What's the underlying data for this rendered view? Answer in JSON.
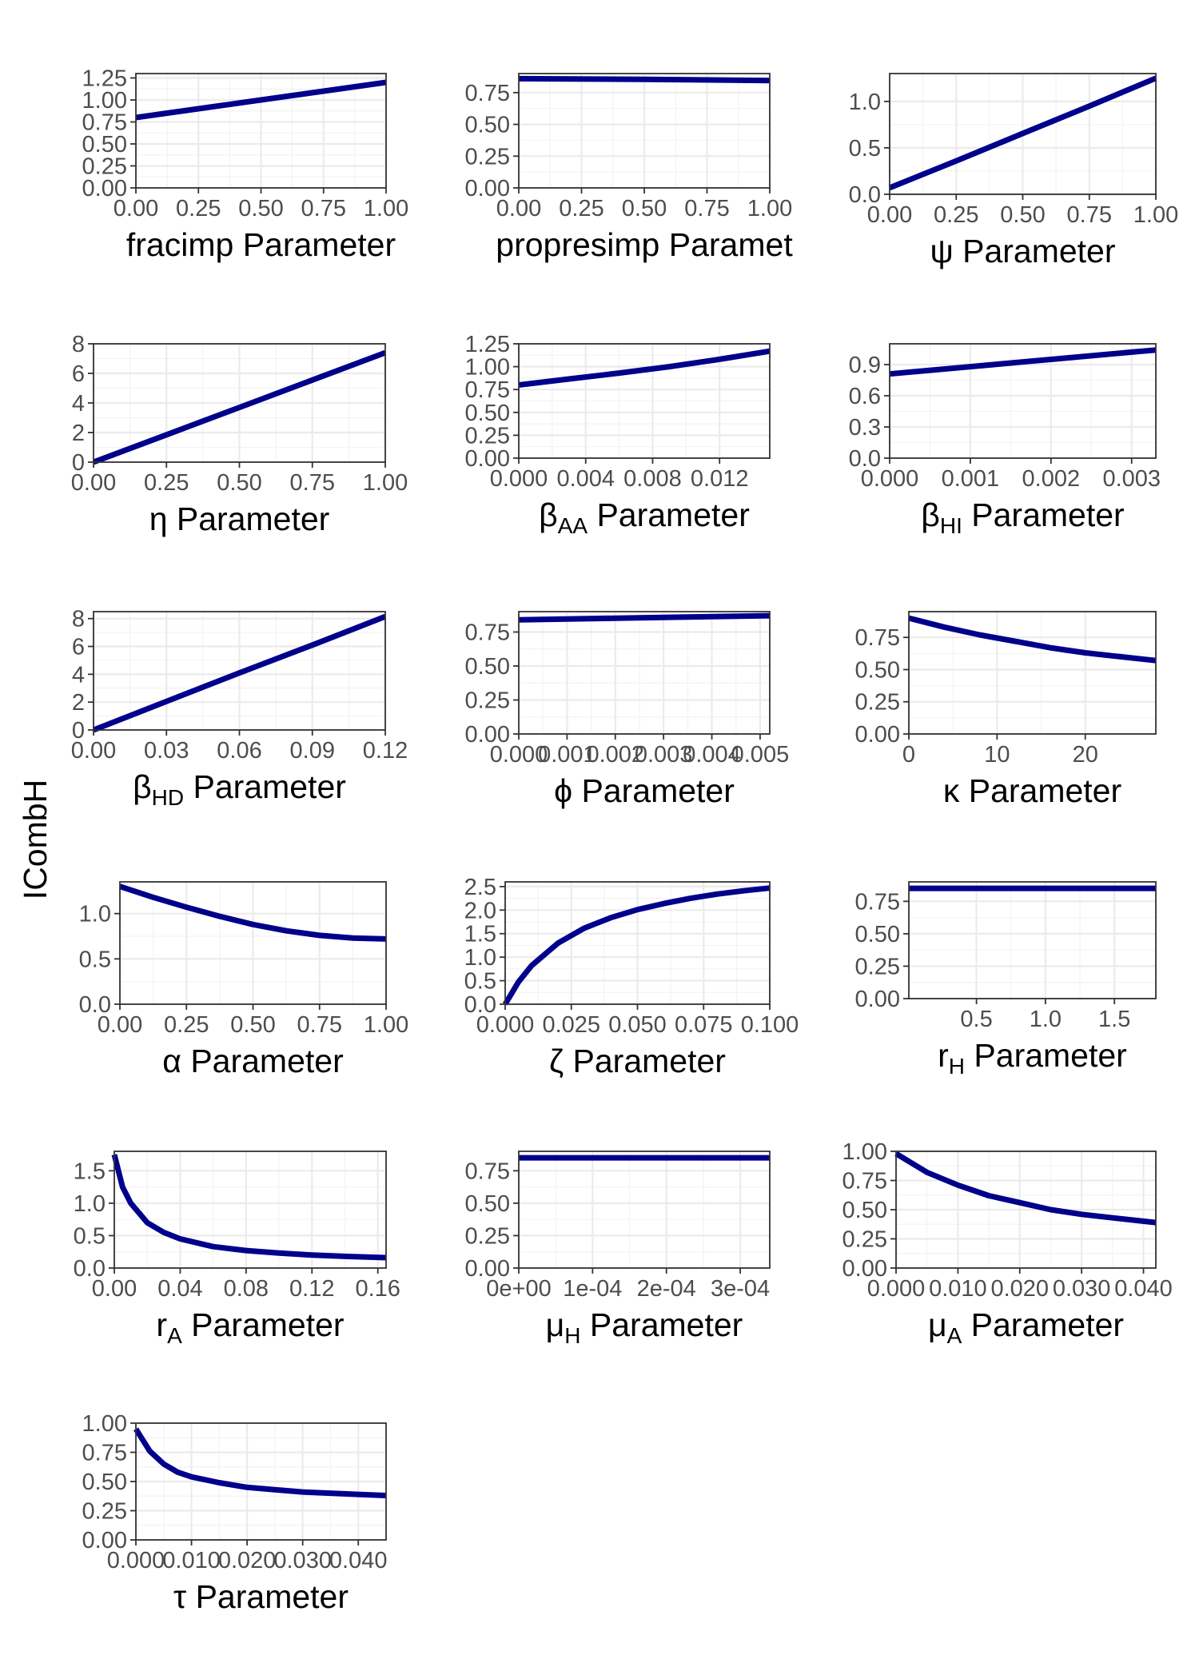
{
  "figure": {
    "ylabel": "ICombH"
  },
  "colors": {
    "line": "#00008b",
    "grid": "#ebebeb",
    "border": "#333333",
    "tick_text": "#4d4d4d"
  },
  "chart_data": [
    {
      "type": "line",
      "name": "fracimp",
      "xlabel": "fracimp Parameter",
      "xlim": [
        0,
        1
      ],
      "ylim": [
        0,
        1.3
      ],
      "xticks": [
        0,
        0.25,
        0.5,
        0.75,
        1
      ],
      "xtick_labels": [
        "0.00",
        "0.25",
        "0.50",
        "0.75",
        "1.00"
      ],
      "yticks": [
        0,
        0.25,
        0.5,
        0.75,
        1,
        1.25
      ],
      "ytick_labels": [
        "0.00",
        "0.25",
        "0.50",
        "0.75",
        "1.00",
        "1.25"
      ],
      "x": [
        0,
        0.25,
        0.5,
        0.75,
        1
      ],
      "y": [
        0.8,
        0.9,
        1.0,
        1.1,
        1.2
      ]
    },
    {
      "type": "line",
      "name": "propresimp",
      "xlabel": "propresimp Paramet",
      "xlim": [
        0,
        1
      ],
      "ylim": [
        0,
        0.9
      ],
      "xticks": [
        0,
        0.25,
        0.5,
        0.75,
        1
      ],
      "xtick_labels": [
        "0.00",
        "0.25",
        "0.50",
        "0.75",
        "1.00"
      ],
      "yticks": [
        0,
        0.25,
        0.5,
        0.75
      ],
      "ytick_labels": [
        "0.00",
        "0.25",
        "0.50",
        "0.75"
      ],
      "x": [
        0,
        0.5,
        1
      ],
      "y": [
        0.86,
        0.855,
        0.845
      ]
    },
    {
      "type": "line",
      "name": "psi",
      "xlabel": "ψ Parameter",
      "xlim": [
        0,
        1
      ],
      "ylim": [
        0,
        1.3
      ],
      "xticks": [
        0,
        0.25,
        0.5,
        0.75,
        1
      ],
      "xtick_labels": [
        "0.00",
        "0.25",
        "0.50",
        "0.75",
        "1.00"
      ],
      "yticks": [
        0,
        0.5,
        1
      ],
      "ytick_labels": [
        "0.0",
        "0.5",
        "1.0"
      ],
      "x": [
        0,
        0.25,
        0.5,
        0.75,
        1
      ],
      "y": [
        0.07,
        0.36,
        0.655,
        0.95,
        1.25
      ]
    },
    {
      "type": "line",
      "name": "eta",
      "xlabel": "η Parameter",
      "xlim": [
        0,
        1
      ],
      "ylim": [
        0,
        8
      ],
      "xticks": [
        0,
        0.25,
        0.5,
        0.75,
        1
      ],
      "xtick_labels": [
        "0.00",
        "0.25",
        "0.50",
        "0.75",
        "1.00"
      ],
      "yticks": [
        0,
        2,
        4,
        6,
        8
      ],
      "ytick_labels": [
        "0",
        "2",
        "4",
        "6",
        "8"
      ],
      "x": [
        0,
        0.25,
        0.5,
        0.75,
        1
      ],
      "y": [
        0,
        1.85,
        3.7,
        5.55,
        7.4
      ]
    },
    {
      "type": "line",
      "name": "betaAA",
      "xlabel": "βAA Parameter",
      "xlim": [
        0,
        0.015
      ],
      "ylim": [
        0,
        1.25
      ],
      "xticks": [
        0,
        0.004,
        0.008,
        0.012
      ],
      "xtick_labels": [
        "0.000",
        "0.004",
        "0.008",
        "0.012"
      ],
      "yticks": [
        0,
        0.25,
        0.5,
        0.75,
        1,
        1.25
      ],
      "ytick_labels": [
        "0.00",
        "0.25",
        "0.50",
        "0.75",
        "1.00",
        "1.25"
      ],
      "x": [
        0,
        0.003,
        0.006,
        0.009,
        0.012,
        0.015
      ],
      "y": [
        0.8,
        0.865,
        0.93,
        1.0,
        1.08,
        1.17
      ]
    },
    {
      "type": "line",
      "name": "betaHI",
      "xlabel": "βHI Parameter",
      "xlim": [
        0,
        0.0033
      ],
      "ylim": [
        0,
        1.1
      ],
      "xticks": [
        0,
        0.001,
        0.002,
        0.003
      ],
      "xtick_labels": [
        "0.000",
        "0.001",
        "0.002",
        "0.003"
      ],
      "yticks": [
        0,
        0.3,
        0.6,
        0.9
      ],
      "ytick_labels": [
        "0.0",
        "0.3",
        "0.6",
        "0.9"
      ],
      "x": [
        0,
        0.001,
        0.002,
        0.003,
        0.0033
      ],
      "y": [
        0.81,
        0.88,
        0.95,
        1.02,
        1.04
      ]
    },
    {
      "type": "line",
      "name": "betaHD",
      "xlabel": "βHD Parameter",
      "xlim": [
        0,
        0.12
      ],
      "ylim": [
        0,
        8.5
      ],
      "xticks": [
        0,
        0.03,
        0.06,
        0.09,
        0.12
      ],
      "xtick_labels": [
        "0.00",
        "0.03",
        "0.06",
        "0.09",
        "0.12"
      ],
      "yticks": [
        0,
        2,
        4,
        6,
        8
      ],
      "ytick_labels": [
        "0",
        "2",
        "4",
        "6",
        "8"
      ],
      "x": [
        0,
        0.03,
        0.06,
        0.09,
        0.12
      ],
      "y": [
        0,
        2.05,
        4.1,
        6.1,
        8.15
      ]
    },
    {
      "type": "line",
      "name": "phi",
      "xlabel": "ϕ Parameter",
      "xlim": [
        0,
        0.0052
      ],
      "ylim": [
        0,
        0.9
      ],
      "xticks": [
        0,
        0.001,
        0.002,
        0.003,
        0.004,
        0.005
      ],
      "xtick_labels": [
        "0.000",
        "0.001",
        "0.002",
        "0.003",
        "0.004",
        "0.005"
      ],
      "yticks": [
        0,
        0.25,
        0.5,
        0.75
      ],
      "ytick_labels": [
        "0.00",
        "0.25",
        "0.50",
        "0.75"
      ],
      "x": [
        0,
        0.0026,
        0.0052
      ],
      "y": [
        0.84,
        0.855,
        0.87
      ]
    },
    {
      "type": "line",
      "name": "kappa",
      "xlabel": "κ Parameter",
      "xlim": [
        0,
        28
      ],
      "ylim": [
        0,
        0.95
      ],
      "xticks": [
        0,
        10,
        20
      ],
      "xtick_labels": [
        "0",
        "10",
        "20"
      ],
      "yticks": [
        0,
        0.25,
        0.5,
        0.75
      ],
      "ytick_labels": [
        "0.00",
        "0.25",
        "0.50",
        "0.75"
      ],
      "x": [
        0,
        4,
        8,
        12,
        16,
        20,
        24,
        28
      ],
      "y": [
        0.9,
        0.83,
        0.77,
        0.72,
        0.67,
        0.63,
        0.6,
        0.57
      ]
    },
    {
      "type": "line",
      "name": "alpha",
      "xlabel": "α Parameter",
      "xlim": [
        0,
        1
      ],
      "ylim": [
        0,
        1.35
      ],
      "xticks": [
        0,
        0.25,
        0.5,
        0.75,
        1
      ],
      "xtick_labels": [
        "0.00",
        "0.25",
        "0.50",
        "0.75",
        "1.00"
      ],
      "yticks": [
        0,
        0.5,
        1
      ],
      "ytick_labels": [
        "0.0",
        "0.5",
        "1.0"
      ],
      "x": [
        0,
        0.125,
        0.25,
        0.375,
        0.5,
        0.625,
        0.75,
        0.875,
        1
      ],
      "y": [
        1.3,
        1.18,
        1.07,
        0.97,
        0.88,
        0.81,
        0.76,
        0.73,
        0.72
      ]
    },
    {
      "type": "line",
      "name": "zeta",
      "xlabel": "ζ Parameter",
      "xlim": [
        0,
        0.1
      ],
      "ylim": [
        0,
        2.6
      ],
      "xticks": [
        0,
        0.025,
        0.05,
        0.075,
        0.1
      ],
      "xtick_labels": [
        "0.000",
        "0.025",
        "0.050",
        "0.075",
        "0.100"
      ],
      "yticks": [
        0,
        0.5,
        1,
        1.5,
        2,
        2.5
      ],
      "ytick_labels": [
        "0.0",
        "0.5",
        "1.0",
        "1.5",
        "2.0",
        "2.5"
      ],
      "x": [
        0,
        0.005,
        0.01,
        0.02,
        0.03,
        0.04,
        0.05,
        0.06,
        0.07,
        0.08,
        0.09,
        0.1
      ],
      "y": [
        0,
        0.47,
        0.82,
        1.3,
        1.62,
        1.84,
        2.01,
        2.14,
        2.25,
        2.34,
        2.41,
        2.47
      ]
    },
    {
      "type": "line",
      "name": "rH",
      "xlabel": "rH Parameter",
      "xlim": [
        0.01,
        1.8
      ],
      "ylim": [
        0,
        0.9
      ],
      "xticks": [
        0.5,
        1,
        1.5
      ],
      "xtick_labels": [
        "0.5",
        "1.0",
        "1.5"
      ],
      "yticks": [
        0,
        0.25,
        0.5,
        0.75
      ],
      "ytick_labels": [
        "0.00",
        "0.25",
        "0.50",
        "0.75"
      ],
      "x": [
        0.01,
        1.8
      ],
      "y": [
        0.85,
        0.85
      ]
    },
    {
      "type": "line",
      "name": "rA",
      "xlabel": "rA Parameter",
      "xlim": [
        0,
        0.165
      ],
      "ylim": [
        0,
        1.8
      ],
      "xticks": [
        0,
        0.04,
        0.08,
        0.12,
        0.16
      ],
      "xtick_labels": [
        "0.00",
        "0.04",
        "0.08",
        "0.12",
        "0.16"
      ],
      "yticks": [
        0,
        0.5,
        1,
        1.5
      ],
      "ytick_labels": [
        "0.0",
        "0.5",
        "1.0",
        "1.5"
      ],
      "x": [
        0,
        0.005,
        0.01,
        0.02,
        0.03,
        0.04,
        0.06,
        0.08,
        0.1,
        0.12,
        0.14,
        0.165
      ],
      "y": [
        1.75,
        1.25,
        1.0,
        0.7,
        0.55,
        0.45,
        0.33,
        0.27,
        0.23,
        0.2,
        0.18,
        0.16
      ]
    },
    {
      "type": "line",
      "name": "muH",
      "xlabel": "μH Parameter",
      "xlim": [
        0,
        0.00034
      ],
      "ylim": [
        0,
        0.9
      ],
      "xticks": [
        0,
        0.0001,
        0.0002,
        0.0003
      ],
      "xtick_labels": [
        "0e+00",
        "1e-04",
        "2e-04",
        "3e-04"
      ],
      "yticks": [
        0,
        0.25,
        0.5,
        0.75
      ],
      "ytick_labels": [
        "0.00",
        "0.25",
        "0.50",
        "0.75"
      ],
      "x": [
        0,
        0.00034
      ],
      "y": [
        0.85,
        0.85
      ]
    },
    {
      "type": "line",
      "name": "muA",
      "xlabel": "μA Parameter",
      "xlim": [
        0,
        0.042
      ],
      "ylim": [
        0,
        1.0
      ],
      "xticks": [
        0,
        0.01,
        0.02,
        0.03,
        0.04
      ],
      "xtick_labels": [
        "0.000",
        "0.010",
        "0.020",
        "0.030",
        "0.040"
      ],
      "yticks": [
        0,
        0.25,
        0.5,
        0.75,
        1
      ],
      "ytick_labels": [
        "0.00",
        "0.25",
        "0.50",
        "0.75",
        "1.00"
      ],
      "x": [
        0,
        0.005,
        0.01,
        0.015,
        0.02,
        0.025,
        0.03,
        0.035,
        0.042
      ],
      "y": [
        0.98,
        0.82,
        0.71,
        0.62,
        0.56,
        0.5,
        0.46,
        0.43,
        0.39
      ]
    },
    {
      "type": "line",
      "name": "tau",
      "xlabel": "τ Parameter",
      "xlim": [
        0,
        0.045
      ],
      "ylim": [
        0,
        1.0
      ],
      "xticks": [
        0,
        0.01,
        0.02,
        0.03,
        0.04
      ],
      "xtick_labels": [
        "0.000",
        "0.010",
        "0.020",
        "0.030",
        "0.040"
      ],
      "yticks": [
        0,
        0.25,
        0.5,
        0.75,
        1
      ],
      "ytick_labels": [
        "0.00",
        "0.25",
        "0.50",
        "0.75",
        "1.00"
      ],
      "x": [
        0,
        0.0025,
        0.005,
        0.0075,
        0.01,
        0.015,
        0.02,
        0.025,
        0.03,
        0.035,
        0.04,
        0.045
      ],
      "y": [
        0.95,
        0.76,
        0.65,
        0.58,
        0.54,
        0.49,
        0.45,
        0.43,
        0.41,
        0.4,
        0.39,
        0.38
      ]
    }
  ]
}
